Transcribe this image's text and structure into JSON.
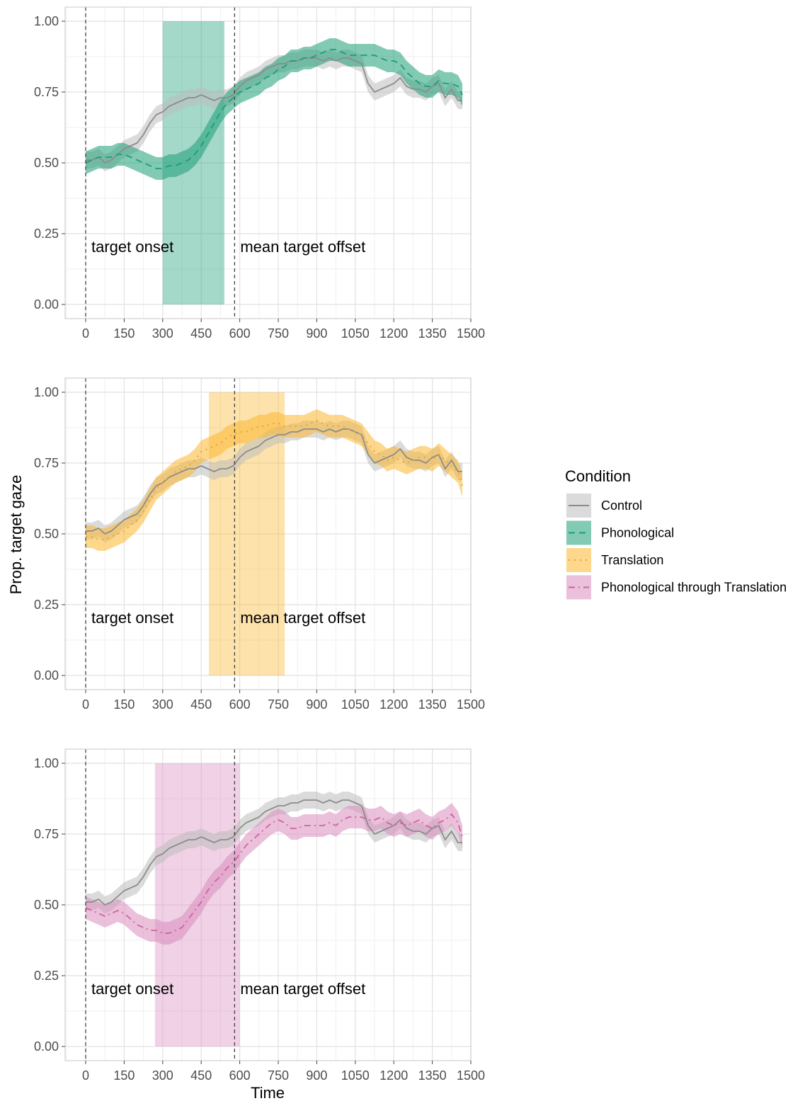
{
  "figure": {
    "ylabel": "Prop. target gaze",
    "xlabel": "Time",
    "annotations": {
      "onset": "target onset",
      "offset": "mean target offset"
    }
  },
  "legend": {
    "title": "Condition",
    "placement": "right",
    "entries": [
      {
        "name": "Control",
        "color": "#8c8c8c",
        "fill": "#bdbdbd",
        "dash": "solid"
      },
      {
        "name": "Phonological",
        "color": "#1b9e77",
        "fill": "#1b9e77",
        "dash": "dashed"
      },
      {
        "name": "Translation",
        "color": "#e6a12b",
        "fill": "#fbb62e",
        "dash": "dotted"
      },
      {
        "name": "Phonological through Translation",
        "color": "#d3629e",
        "fill": "#d98cbd",
        "dash": "dashdot"
      }
    ]
  },
  "chart_data": [
    {
      "type": "line",
      "xlim": [
        -80,
        1500
      ],
      "ylim": [
        -0.05,
        1.05
      ],
      "x_ticks": [
        0,
        150,
        300,
        450,
        600,
        750,
        900,
        1050,
        1200,
        1350,
        1500
      ],
      "y_ticks": [
        "0.00",
        "0.25",
        "0.50",
        "0.75",
        "1.00"
      ],
      "onset_x": 0,
      "offset_x": 580,
      "window": {
        "x0": 300,
        "x1": 540,
        "color": "#1b9e77"
      },
      "series": [
        {
          "name": "Control",
          "x": [
            0,
            25,
            50,
            75,
            100,
            125,
            150,
            175,
            200,
            225,
            250,
            275,
            300,
            325,
            350,
            375,
            400,
            425,
            450,
            475,
            500,
            525,
            550,
            575,
            600,
            625,
            650,
            675,
            700,
            725,
            750,
            775,
            800,
            825,
            850,
            875,
            900,
            925,
            950,
            975,
            1000,
            1025,
            1050,
            1075,
            1100,
            1125,
            1150,
            1175,
            1200,
            1225,
            1250,
            1275,
            1300,
            1325,
            1350,
            1375,
            1400,
            1425,
            1450,
            1467
          ],
          "y": [
            0.51,
            0.51,
            0.52,
            0.5,
            0.51,
            0.53,
            0.55,
            0.56,
            0.57,
            0.6,
            0.64,
            0.67,
            0.68,
            0.7,
            0.71,
            0.72,
            0.73,
            0.73,
            0.74,
            0.73,
            0.72,
            0.73,
            0.73,
            0.74,
            0.77,
            0.79,
            0.8,
            0.81,
            0.83,
            0.84,
            0.85,
            0.85,
            0.86,
            0.86,
            0.87,
            0.87,
            0.87,
            0.86,
            0.87,
            0.86,
            0.87,
            0.87,
            0.86,
            0.85,
            0.78,
            0.75,
            0.76,
            0.77,
            0.78,
            0.8,
            0.77,
            0.76,
            0.76,
            0.75,
            0.77,
            0.78,
            0.73,
            0.76,
            0.72,
            0.72
          ],
          "band": 0.03
        },
        {
          "name": "Phonological",
          "x": [
            0,
            25,
            50,
            75,
            100,
            125,
            150,
            175,
            200,
            225,
            250,
            275,
            300,
            325,
            350,
            375,
            400,
            425,
            450,
            475,
            500,
            525,
            550,
            575,
            600,
            625,
            650,
            675,
            700,
            725,
            750,
            775,
            800,
            825,
            850,
            875,
            900,
            925,
            950,
            975,
            1000,
            1025,
            1050,
            1075,
            1100,
            1125,
            1150,
            1175,
            1200,
            1225,
            1250,
            1275,
            1300,
            1325,
            1350,
            1375,
            1400,
            1425,
            1450,
            1467
          ],
          "y": [
            0.5,
            0.51,
            0.52,
            0.52,
            0.52,
            0.53,
            0.53,
            0.52,
            0.51,
            0.5,
            0.49,
            0.48,
            0.48,
            0.49,
            0.49,
            0.5,
            0.51,
            0.53,
            0.56,
            0.6,
            0.64,
            0.68,
            0.71,
            0.73,
            0.75,
            0.76,
            0.77,
            0.78,
            0.8,
            0.81,
            0.83,
            0.84,
            0.86,
            0.86,
            0.87,
            0.87,
            0.88,
            0.89,
            0.9,
            0.9,
            0.89,
            0.88,
            0.88,
            0.88,
            0.88,
            0.88,
            0.87,
            0.86,
            0.86,
            0.85,
            0.82,
            0.8,
            0.78,
            0.77,
            0.77,
            0.79,
            0.78,
            0.78,
            0.77,
            0.74
          ],
          "band": 0.04
        }
      ]
    },
    {
      "type": "line",
      "xlim": [
        -80,
        1500
      ],
      "ylim": [
        -0.05,
        1.05
      ],
      "x_ticks": [
        0,
        150,
        300,
        450,
        600,
        750,
        900,
        1050,
        1200,
        1350,
        1500
      ],
      "y_ticks": [
        "0.00",
        "0.25",
        "0.50",
        "0.75",
        "1.00"
      ],
      "onset_x": 0,
      "offset_x": 580,
      "window": {
        "x0": 480,
        "x1": 775,
        "color": "#fbb62e"
      },
      "series": [
        {
          "name": "Control",
          "x": [
            0,
            25,
            50,
            75,
            100,
            125,
            150,
            175,
            200,
            225,
            250,
            275,
            300,
            325,
            350,
            375,
            400,
            425,
            450,
            475,
            500,
            525,
            550,
            575,
            600,
            625,
            650,
            675,
            700,
            725,
            750,
            775,
            800,
            825,
            850,
            875,
            900,
            925,
            950,
            975,
            1000,
            1025,
            1050,
            1075,
            1100,
            1125,
            1150,
            1175,
            1200,
            1225,
            1250,
            1275,
            1300,
            1325,
            1350,
            1375,
            1400,
            1425,
            1450,
            1467
          ],
          "y": [
            0.51,
            0.51,
            0.52,
            0.5,
            0.51,
            0.53,
            0.55,
            0.56,
            0.57,
            0.6,
            0.64,
            0.67,
            0.68,
            0.7,
            0.71,
            0.72,
            0.73,
            0.73,
            0.74,
            0.73,
            0.72,
            0.73,
            0.73,
            0.74,
            0.77,
            0.79,
            0.8,
            0.81,
            0.83,
            0.84,
            0.85,
            0.85,
            0.86,
            0.86,
            0.87,
            0.87,
            0.87,
            0.86,
            0.87,
            0.86,
            0.87,
            0.87,
            0.86,
            0.85,
            0.78,
            0.75,
            0.76,
            0.77,
            0.78,
            0.8,
            0.77,
            0.76,
            0.76,
            0.75,
            0.77,
            0.78,
            0.73,
            0.76,
            0.72,
            0.72
          ],
          "band": 0.03
        },
        {
          "name": "Translation",
          "x": [
            0,
            25,
            50,
            75,
            100,
            125,
            150,
            175,
            200,
            225,
            250,
            275,
            300,
            325,
            350,
            375,
            400,
            425,
            450,
            475,
            500,
            525,
            550,
            575,
            600,
            625,
            650,
            675,
            700,
            725,
            750,
            775,
            800,
            825,
            850,
            875,
            900,
            925,
            950,
            975,
            1000,
            1025,
            1050,
            1075,
            1100,
            1125,
            1150,
            1175,
            1200,
            1225,
            1250,
            1275,
            1300,
            1325,
            1350,
            1375,
            1400,
            1425,
            1450,
            1467
          ],
          "y": [
            0.49,
            0.49,
            0.48,
            0.48,
            0.49,
            0.5,
            0.51,
            0.53,
            0.55,
            0.58,
            0.62,
            0.66,
            0.68,
            0.7,
            0.72,
            0.73,
            0.74,
            0.76,
            0.79,
            0.8,
            0.81,
            0.82,
            0.84,
            0.85,
            0.86,
            0.86,
            0.87,
            0.88,
            0.88,
            0.89,
            0.89,
            0.88,
            0.88,
            0.88,
            0.88,
            0.89,
            0.9,
            0.89,
            0.88,
            0.88,
            0.88,
            0.87,
            0.86,
            0.85,
            0.82,
            0.79,
            0.78,
            0.76,
            0.77,
            0.76,
            0.75,
            0.76,
            0.77,
            0.77,
            0.76,
            0.78,
            0.76,
            0.74,
            0.72,
            0.67
          ],
          "band": 0.04
        }
      ]
    },
    {
      "type": "line",
      "xlim": [
        -80,
        1500
      ],
      "ylim": [
        -0.05,
        1.05
      ],
      "x_ticks": [
        0,
        150,
        300,
        450,
        600,
        750,
        900,
        1050,
        1200,
        1350,
        1500
      ],
      "y_ticks": [
        "0.00",
        "0.25",
        "0.50",
        "0.75",
        "1.00"
      ],
      "onset_x": 0,
      "offset_x": 580,
      "window": {
        "x0": 270,
        "x1": 600,
        "color": "#d98cbd"
      },
      "series": [
        {
          "name": "Control",
          "x": [
            0,
            25,
            50,
            75,
            100,
            125,
            150,
            175,
            200,
            225,
            250,
            275,
            300,
            325,
            350,
            375,
            400,
            425,
            450,
            475,
            500,
            525,
            550,
            575,
            600,
            625,
            650,
            675,
            700,
            725,
            750,
            775,
            800,
            825,
            850,
            875,
            900,
            925,
            950,
            975,
            1000,
            1025,
            1050,
            1075,
            1100,
            1125,
            1150,
            1175,
            1200,
            1225,
            1250,
            1275,
            1300,
            1325,
            1350,
            1375,
            1400,
            1425,
            1450,
            1467
          ],
          "y": [
            0.51,
            0.51,
            0.52,
            0.5,
            0.51,
            0.53,
            0.55,
            0.56,
            0.57,
            0.6,
            0.64,
            0.67,
            0.68,
            0.7,
            0.71,
            0.72,
            0.73,
            0.73,
            0.74,
            0.73,
            0.72,
            0.73,
            0.73,
            0.74,
            0.77,
            0.79,
            0.8,
            0.81,
            0.83,
            0.84,
            0.85,
            0.85,
            0.86,
            0.86,
            0.87,
            0.87,
            0.87,
            0.86,
            0.87,
            0.86,
            0.87,
            0.87,
            0.86,
            0.85,
            0.78,
            0.75,
            0.76,
            0.77,
            0.78,
            0.8,
            0.77,
            0.76,
            0.76,
            0.75,
            0.77,
            0.78,
            0.73,
            0.76,
            0.72,
            0.72
          ],
          "band": 0.03
        },
        {
          "name": "Phonological through Translation",
          "x": [
            0,
            25,
            50,
            75,
            100,
            125,
            150,
            175,
            200,
            225,
            250,
            275,
            300,
            325,
            350,
            375,
            400,
            425,
            450,
            475,
            500,
            525,
            550,
            575,
            600,
            625,
            650,
            675,
            700,
            725,
            750,
            775,
            800,
            825,
            850,
            875,
            900,
            925,
            950,
            975,
            1000,
            1025,
            1050,
            1075,
            1100,
            1125,
            1150,
            1175,
            1200,
            1225,
            1250,
            1275,
            1300,
            1325,
            1350,
            1375,
            1400,
            1425,
            1450,
            1467
          ],
          "y": [
            0.49,
            0.48,
            0.47,
            0.46,
            0.47,
            0.48,
            0.47,
            0.45,
            0.43,
            0.42,
            0.41,
            0.41,
            0.4,
            0.4,
            0.41,
            0.42,
            0.45,
            0.48,
            0.51,
            0.55,
            0.58,
            0.6,
            0.63,
            0.65,
            0.68,
            0.71,
            0.73,
            0.75,
            0.77,
            0.79,
            0.8,
            0.79,
            0.77,
            0.77,
            0.78,
            0.78,
            0.78,
            0.78,
            0.79,
            0.78,
            0.8,
            0.81,
            0.81,
            0.81,
            0.8,
            0.8,
            0.81,
            0.79,
            0.78,
            0.79,
            0.78,
            0.79,
            0.8,
            0.78,
            0.77,
            0.79,
            0.8,
            0.82,
            0.79,
            0.74
          ],
          "band": 0.04
        }
      ]
    }
  ]
}
